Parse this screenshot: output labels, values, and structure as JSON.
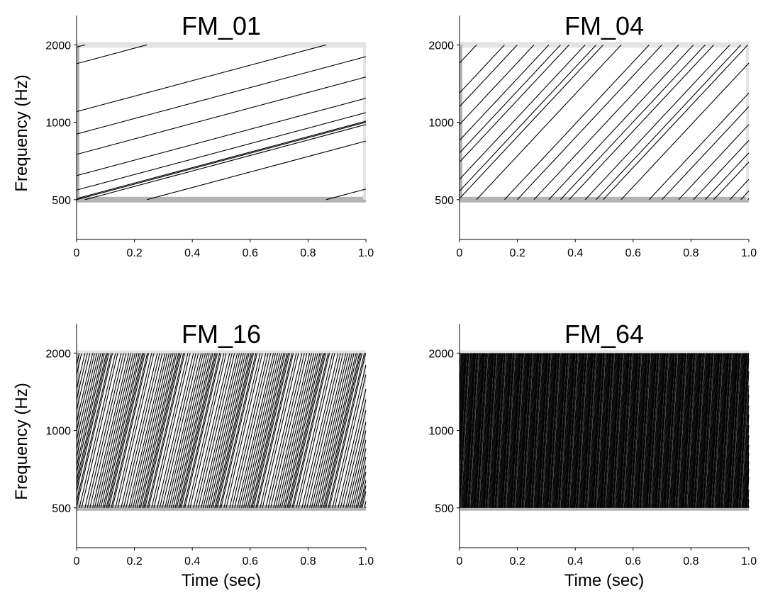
{
  "figure": {
    "background": "#ffffff",
    "line_color": "#000000",
    "band_low_color": "#b4b4b4",
    "band_high_color": "#e3e3e3"
  },
  "chart_data": [
    {
      "type": "line",
      "title": "FM_01",
      "ylabel": "Frequency (Hz)",
      "xlabel": "",
      "xlim": [
        0,
        1
      ],
      "ylim": [
        350,
        2600
      ],
      "y_scale": "log",
      "xticks": [
        0,
        0.2,
        0.4,
        0.6,
        0.8,
        1.0
      ],
      "xtick_labels": [
        "0",
        "0.2",
        "0.4",
        "0.6",
        "0.8",
        "1.0"
      ],
      "yticks": [
        500,
        1000,
        2000
      ],
      "ytick_labels": [
        "500",
        "1000",
        "2000"
      ],
      "sweep_range_hz": [
        500,
        2000
      ],
      "sweep_rate_oct_per_sec": 1,
      "sweep_start_freqs_hz": [
        1960,
        1690,
        1100,
        900,
        750,
        620,
        545,
        500,
        505
      ],
      "grid": false
    },
    {
      "type": "line",
      "title": "FM_04",
      "ylabel": "",
      "xlabel": "",
      "xlim": [
        0,
        1
      ],
      "ylim": [
        350,
        2600
      ],
      "y_scale": "log",
      "xticks": [
        0,
        0.2,
        0.4,
        0.6,
        0.8,
        1.0
      ],
      "xtick_labels": [
        "0",
        "0.2",
        "0.4",
        "0.6",
        "0.8",
        "1.0"
      ],
      "yticks": [
        500,
        1000,
        2000
      ],
      "ytick_labels": [
        "500",
        "1000",
        "2000"
      ],
      "sweep_range_hz": [
        500,
        2000
      ],
      "sweep_rate_oct_per_sec": 4,
      "sweep_start_freqs_hz": [
        1700,
        1150,
        850,
        700,
        600,
        540,
        505,
        1300,
        980,
        760
      ],
      "grid": false
    },
    {
      "type": "line",
      "title": "FM_16",
      "ylabel": "Frequency (Hz)",
      "xlabel": "Time (sec)",
      "xlim": [
        0,
        1
      ],
      "ylim": [
        350,
        2600
      ],
      "y_scale": "log",
      "xticks": [
        0,
        0.2,
        0.4,
        0.6,
        0.8,
        1.0
      ],
      "xtick_labels": [
        "0",
        "0.2",
        "0.4",
        "0.6",
        "0.8",
        "1.0"
      ],
      "yticks": [
        500,
        1000,
        2000
      ],
      "ytick_labels": [
        "500",
        "1000",
        "2000"
      ],
      "sweep_range_hz": [
        500,
        2000
      ],
      "sweep_rate_oct_per_sec": 16,
      "sweep_start_freqs_hz": [
        1800,
        1450,
        1200,
        1000,
        850,
        730,
        640,
        580,
        530,
        505,
        1650,
        1320,
        1080,
        920,
        790,
        690,
        610
      ],
      "grid": false
    },
    {
      "type": "line",
      "title": "FM_64",
      "ylabel": "",
      "xlabel": "Time (sec)",
      "xlim": [
        0,
        1
      ],
      "ylim": [
        350,
        2600
      ],
      "y_scale": "log",
      "xticks": [
        0,
        0.2,
        0.4,
        0.6,
        0.8,
        1.0
      ],
      "xtick_labels": [
        "0",
        "0.2",
        "0.4",
        "0.6",
        "0.8",
        "1.0"
      ],
      "yticks": [
        500,
        1000,
        2000
      ],
      "ytick_labels": [
        "500",
        "1000",
        "2000"
      ],
      "sweep_range_hz": [
        500,
        2000
      ],
      "sweep_rate_oct_per_sec": 64,
      "sweep_start_freqs_hz": [
        1900,
        1500,
        1250,
        1050,
        880,
        760,
        660,
        590,
        540,
        510,
        1700,
        1380,
        1150,
        960,
        820,
        710
      ],
      "grid": false
    }
  ]
}
